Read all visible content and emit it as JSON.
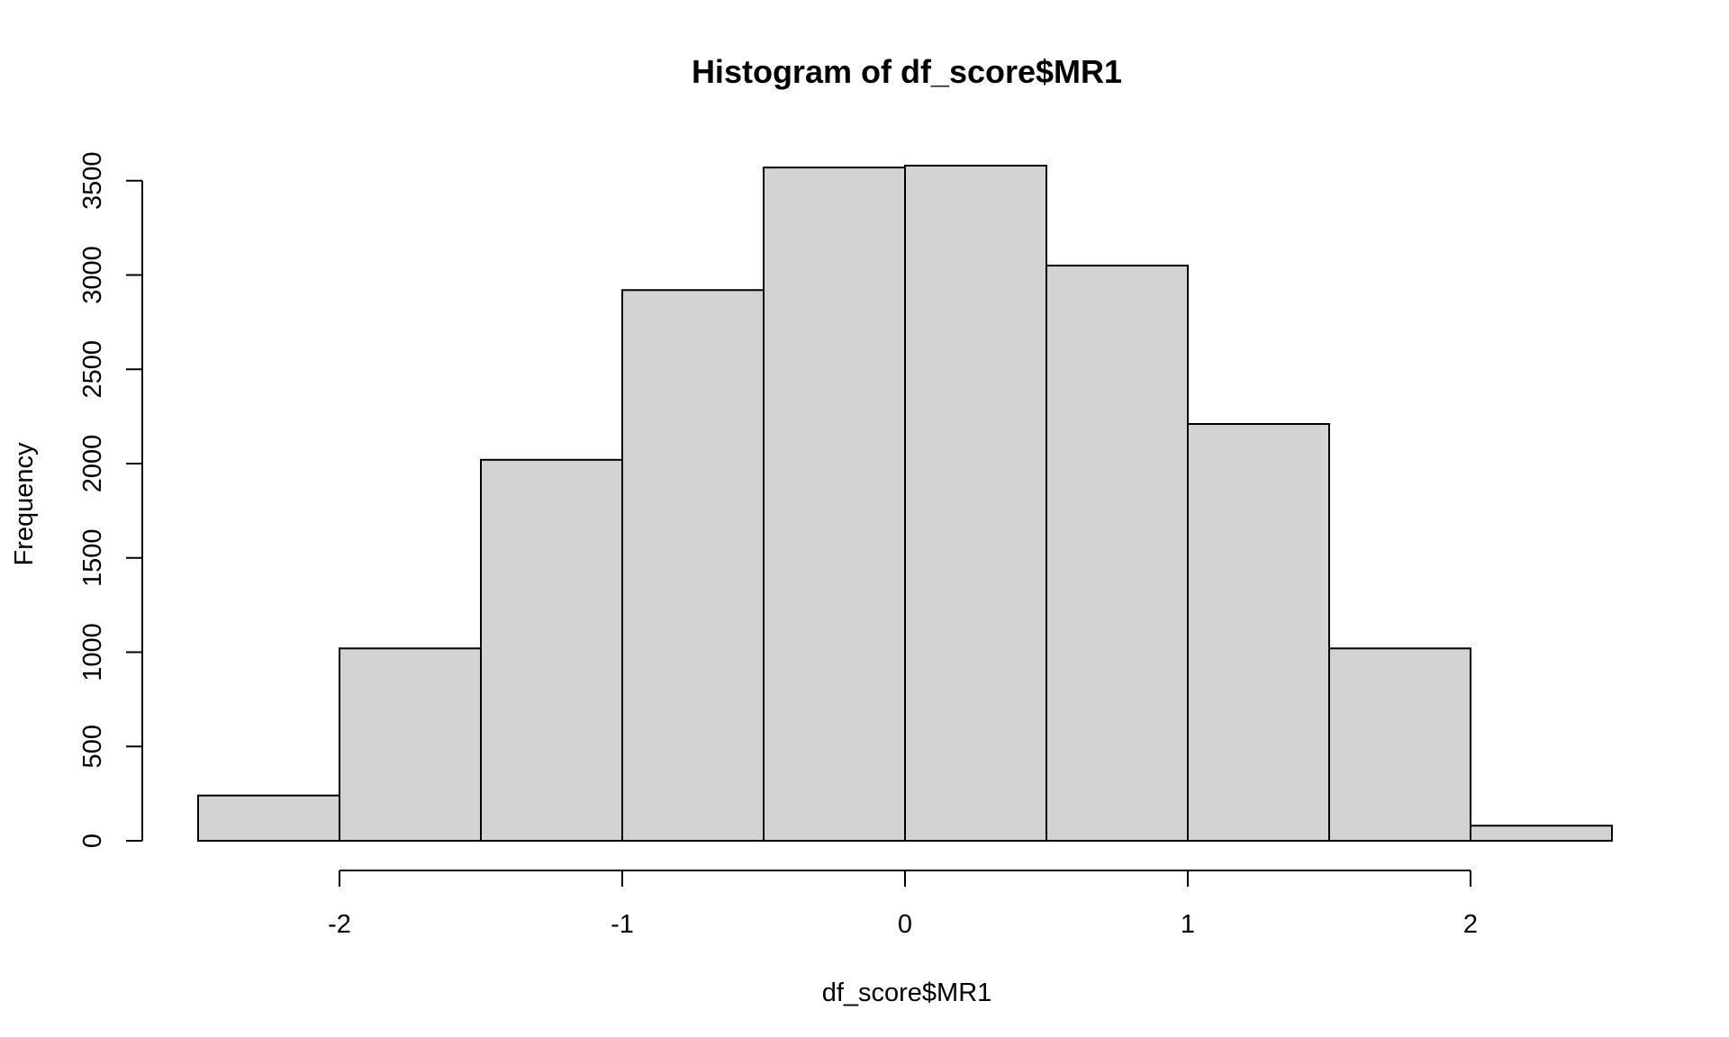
{
  "chart_data": {
    "type": "bar",
    "title": "Histogram of df_score$MR1",
    "xlabel": "df_score$MR1",
    "ylabel": "Frequency",
    "bins": [
      {
        "from": -2.5,
        "to": -2.0,
        "count": 240
      },
      {
        "from": -2.0,
        "to": -1.5,
        "count": 1020
      },
      {
        "from": -1.5,
        "to": -1.0,
        "count": 2020
      },
      {
        "from": -1.0,
        "to": -0.5,
        "count": 2920
      },
      {
        "from": -0.5,
        "to": 0.0,
        "count": 3570
      },
      {
        "from": 0.0,
        "to": 0.5,
        "count": 3580
      },
      {
        "from": 0.5,
        "to": 1.0,
        "count": 3050
      },
      {
        "from": 1.0,
        "to": 1.5,
        "count": 2210
      },
      {
        "from": 1.5,
        "to": 2.0,
        "count": 1020
      },
      {
        "from": 2.0,
        "to": 2.5,
        "count": 80
      }
    ],
    "xlim": [
      -2.5,
      2.5
    ],
    "ylim": [
      0,
      3580
    ],
    "x_ticks": [
      "-2",
      "-1",
      "0",
      "1",
      "2"
    ],
    "y_ticks": [
      "0",
      "500",
      "1000",
      "1500",
      "2000",
      "2500",
      "3000",
      "3500"
    ],
    "bar_color": "#d3d3d3",
    "grid": false,
    "legend": "none"
  }
}
